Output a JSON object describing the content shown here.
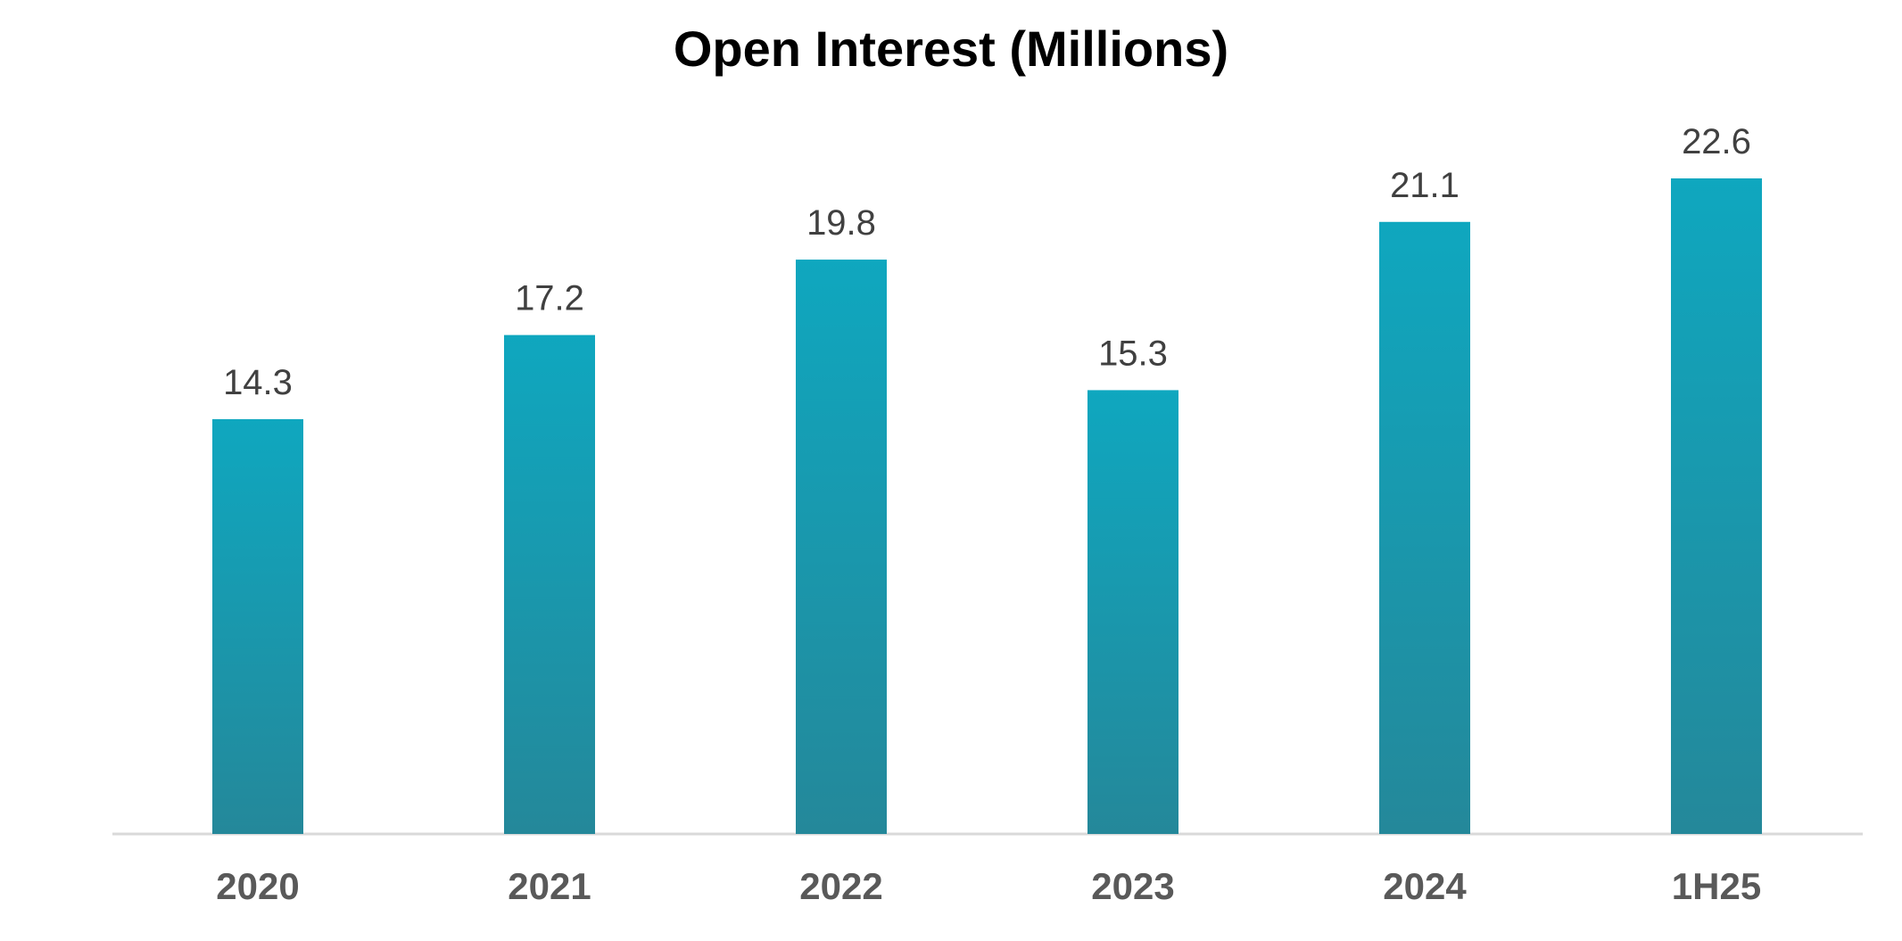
{
  "chart_data": {
    "type": "bar",
    "title": "Open Interest (Millions)",
    "categories": [
      "2020",
      "2021",
      "2022",
      "2023",
      "2024",
      "1H25"
    ],
    "values": [
      14.3,
      17.2,
      19.8,
      15.3,
      21.1,
      22.6
    ],
    "value_labels": [
      "14.3",
      "17.2",
      "19.8",
      "15.3",
      "21.1",
      "22.6"
    ],
    "xlabel": "",
    "ylabel": "",
    "ylim": [
      0,
      22.6
    ],
    "grid": false,
    "legend": "none",
    "colors": {
      "bar_top": "#0fa7bf",
      "bar_bottom": "#24889a",
      "axis": "#d9d9d9",
      "value_text": "#404040",
      "tick_text": "#595959",
      "title_text": "#000000"
    }
  }
}
